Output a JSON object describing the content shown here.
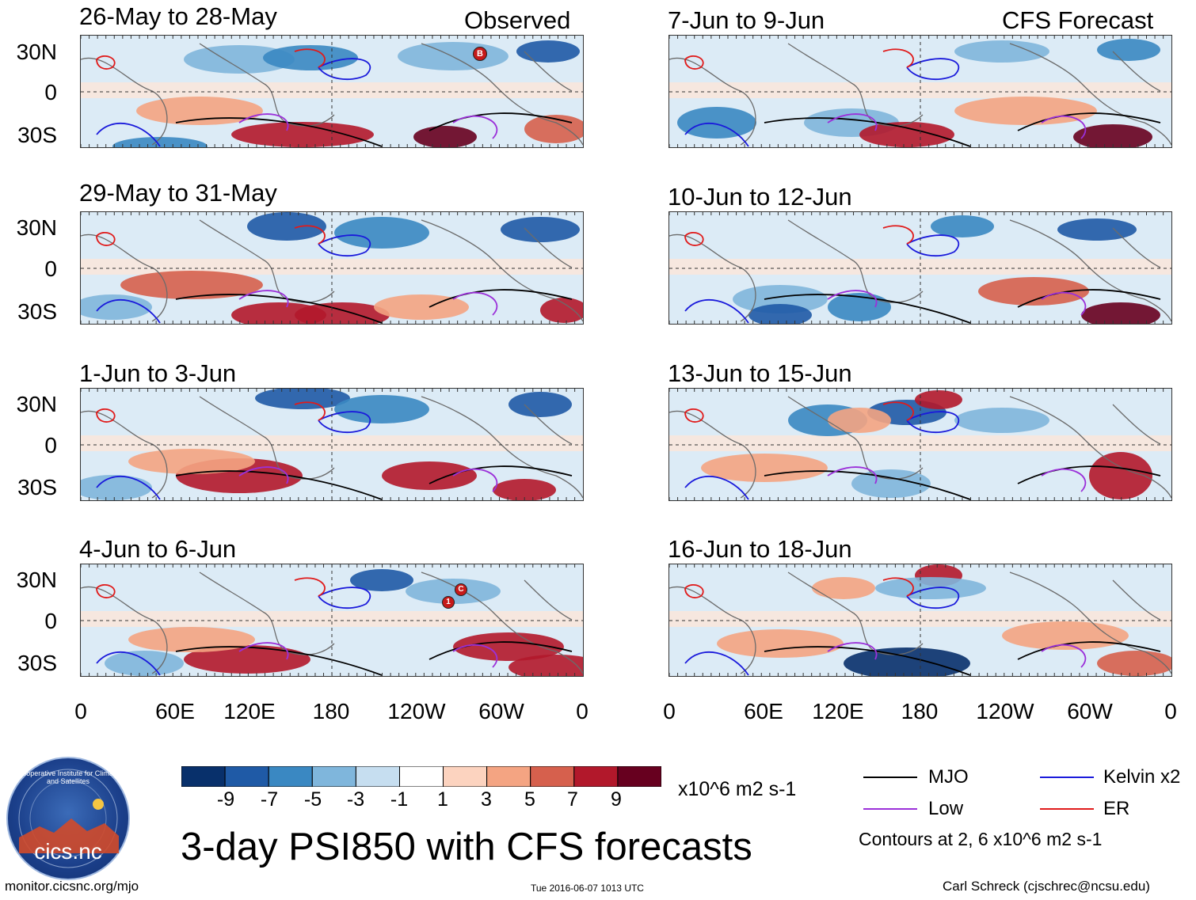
{
  "header": {
    "left_label": "Observed",
    "right_label": "CFS Forecast"
  },
  "panels_observed": [
    {
      "period": "26-May to 28-May"
    },
    {
      "period": "29-May to 31-May"
    },
    {
      "period": "1-Jun to 3-Jun"
    },
    {
      "period": "4-Jun to 6-Jun"
    }
  ],
  "panels_forecast": [
    {
      "period": "7-Jun to 9-Jun"
    },
    {
      "period": "10-Jun to 12-Jun"
    },
    {
      "period": "13-Jun to 15-Jun"
    },
    {
      "period": "16-Jun to 18-Jun"
    }
  ],
  "lat_labels": [
    "30N",
    "0",
    "30S"
  ],
  "lon_labels": [
    "0",
    "60E",
    "120E",
    "180",
    "120W",
    "60W",
    "0"
  ],
  "storm_markers": {
    "panel1": [
      "B"
    ],
    "panel4": [
      "1",
      "C"
    ]
  },
  "colorbar": {
    "labels": [
      "-9",
      "-7",
      "-5",
      "-3",
      "-1",
      "1",
      "3",
      "5",
      "7",
      "9"
    ],
    "colors": [
      "#08306b",
      "#1f5aa6",
      "#3a88c2",
      "#7fb6dc",
      "#c6def0",
      "#ffffff",
      "#fcd3bf",
      "#f4a482",
      "#d6604d",
      "#b2182b",
      "#67001f"
    ],
    "units": "x10^6 m2 s-1"
  },
  "legend": {
    "items": [
      {
        "label": "MJO",
        "color": "#000000"
      },
      {
        "label": "Kelvin x2",
        "color": "#1a1adb"
      },
      {
        "label": "Low",
        "color": "#9b30d9"
      },
      {
        "label": "ER",
        "color": "#e01b1b"
      }
    ],
    "contour_note": "Contours at 2, 6 x10^6 m2 s-1"
  },
  "logo": {
    "text": "cics.nc",
    "ring_text": "Cooperative Institute for Climate and Satellites"
  },
  "main_title": "3-day PSI850 with CFS forecasts",
  "footer": {
    "url": "monitor.cicsnc.org/mjo",
    "timestamp": "Tue 2016-06-07 1013 UTC",
    "author": "Carl Schreck (cjschrec@ncsu.edu)"
  }
}
